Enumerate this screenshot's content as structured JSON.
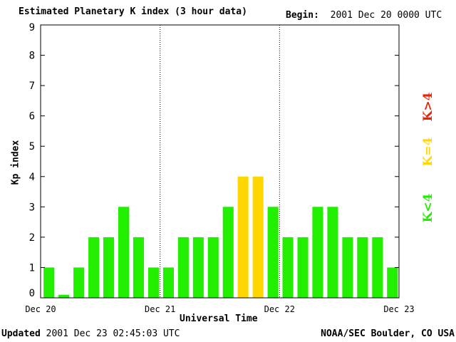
{
  "header": {
    "title": "Estimated Planetary K index (3 hour data)",
    "begin_label": "Begin:",
    "begin_value": "2001 Dec 20 0000 UTC"
  },
  "footer": {
    "updated_label": "Updated",
    "updated_value": "2001 Dec 23 02:45:03 UTC",
    "source": "NOAA/SEC Boulder, CO USA"
  },
  "legend": {
    "low": "K<4",
    "equal": "K=4",
    "high": "K>4"
  },
  "colors": {
    "low": "#22ee00",
    "equal": "#ffd700",
    "high": "#ee2200",
    "axis": "#000000"
  },
  "chart_data": {
    "type": "bar",
    "xlabel": "Universal Time",
    "ylabel": "Kp index",
    "ylim": [
      0,
      9
    ],
    "yticks": [
      "0",
      "1",
      "2",
      "3",
      "4",
      "5",
      "6",
      "7",
      "8",
      "9"
    ],
    "day_labels": [
      "Dec 20",
      "Dec 21",
      "Dec 22",
      "Dec 23"
    ],
    "interval_hours": 3,
    "values": [
      1,
      0.1,
      1,
      2,
      2,
      3,
      2,
      1,
      1,
      2,
      2,
      2,
      3,
      4,
      4,
      3,
      2,
      2,
      3,
      3,
      2,
      2,
      2,
      1
    ],
    "grid": "dotted vertical lines at day boundaries"
  }
}
